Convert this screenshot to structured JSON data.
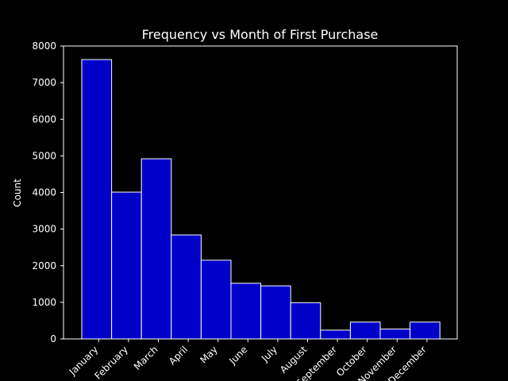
{
  "chart_data": {
    "type": "bar",
    "title": "Frequency vs Month of First Purchase",
    "xlabel": "",
    "ylabel": "Count",
    "categories": [
      "January",
      "February",
      "March",
      "April",
      "May",
      "June",
      "July",
      "August",
      "September",
      "October",
      "November",
      "December"
    ],
    "values": [
      7630,
      4010,
      4920,
      2840,
      2150,
      1520,
      1450,
      990,
      240,
      460,
      270,
      460
    ],
    "ylim": [
      0,
      8000
    ],
    "yticks": [
      0,
      1000,
      2000,
      3000,
      4000,
      5000,
      6000,
      7000,
      8000
    ],
    "grid": false,
    "colors": {
      "background": "#000000",
      "bar_fill": "#0000c8",
      "bar_edge": "#ffffff",
      "axis": "#ffffff",
      "text": "#ffffff"
    }
  }
}
